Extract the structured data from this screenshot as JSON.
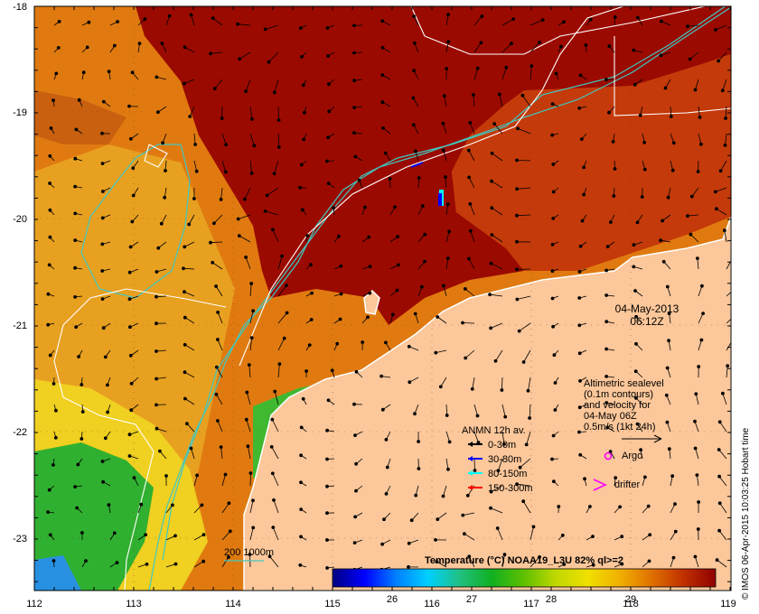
{
  "chart_data": {
    "type": "heatmap",
    "title": "Temperature (°C) NOAA19_L3U 82% ql>=2",
    "x_ticks": [
      "112",
      "113",
      "114",
      "115",
      "116",
      "117",
      "118",
      "119"
    ],
    "y_ticks": [
      "-18",
      "-19",
      "-20",
      "-21",
      "-22",
      "-23"
    ],
    "xlim": [
      112,
      119
    ],
    "ylim": [
      -23.5,
      -18
    ],
    "colorbar": {
      "ticks": [
        "26",
        "27",
        "28",
        "29"
      ],
      "range": [
        25.0,
        29.7
      ],
      "colors": [
        "#00007f",
        "#0000ff",
        "#0080ff",
        "#00d0ff",
        "#20c080",
        "#10b020",
        "#60c000",
        "#c0d800",
        "#f0e000",
        "#f0b000",
        "#e07000",
        "#c03000",
        "#900000"
      ]
    },
    "date": "04-May-2013",
    "time": "06:12Z",
    "legend": {
      "title": "ANMN 12h av.",
      "items": [
        {
          "label": "0-30m",
          "color": "#000000"
        },
        {
          "label": "30-80m",
          "color": "#0000ff"
        },
        {
          "label": "80-150m",
          "color": "#00ffff"
        },
        {
          "label": "150-300m",
          "color": "#ff0000"
        }
      ],
      "argo_label": "Argo",
      "drifter_label": "drifter"
    },
    "sealevel_note": [
      "Altimetric sealevel",
      "(0.1m contours)",
      "and velocity for",
      "04-May 06Z",
      "0.5m/s (1kt 24h)"
    ],
    "bathymetry_label": "200  1000m",
    "credit": "© IMOS 06-Apr-2015 10:03:25 Hobart time",
    "colors": {
      "land": "#fcc79a",
      "warm": "#9b0a00",
      "contour": "#ffffff",
      "bathy": "#40c8c0",
      "argo": "#ff00ff"
    }
  }
}
